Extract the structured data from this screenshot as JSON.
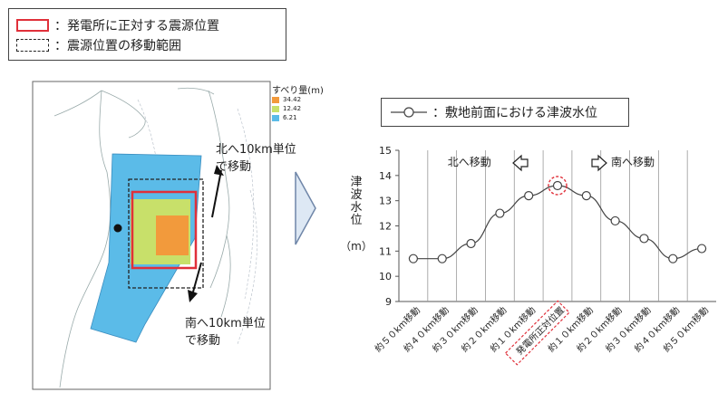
{
  "legend": {
    "items": [
      {
        "label": "：発電所に正対する震源位置",
        "style": "red-solid"
      },
      {
        "label": "：震源位置の移動範囲",
        "style": "black-dashed"
      }
    ]
  },
  "map": {
    "scale_title": "すべり量(m)",
    "scale_items": [
      {
        "label": "34.42",
        "color": "#f29a3c"
      },
      {
        "label": "12.42",
        "color": "#c8e06a"
      },
      {
        "label": "6.21",
        "color": "#5bbbe8"
      }
    ],
    "north_label_line1": "北へ10km単位",
    "north_label_line2": "で移動",
    "south_label_line1": "南へ10km単位",
    "south_label_line2": "で移動",
    "colors": {
      "fault": "#5bbbe8",
      "mid": "#c8e06a",
      "core": "#f29a3c",
      "red": "#e0303a",
      "arrow": "#dde8f4"
    }
  },
  "chart_legend": {
    "label": "：敷地前面における津波水位"
  },
  "chart_data": {
    "type": "line",
    "title": "",
    "xlabel": "",
    "ylabel": "津波水位",
    "ylabel_unit": "（m）",
    "ylim": [
      9,
      15
    ],
    "yticks": [
      "9",
      "10",
      "11",
      "12",
      "13",
      "14",
      "15"
    ],
    "categories": [
      "約５０km移動",
      "約４０km移動",
      "約３０km移動",
      "約２０km移動",
      "約１０km移動",
      "発電所正対位置",
      "約１０km移動",
      "約２０km移動",
      "約３０km移動",
      "約４０km移動",
      "約５０km移動"
    ],
    "series": [
      {
        "values": [
          10.7,
          10.7,
          11.3,
          12.5,
          13.2,
          13.6,
          13.2,
          12.2,
          11.5,
          10.7,
          11.1
        ]
      }
    ],
    "annotations": {
      "north": "北へ移動",
      "south": "南へ移動"
    },
    "highlight_index": 5,
    "colors": {
      "line": "#444444",
      "highlight": "#e0303a",
      "grid": "#999999"
    }
  }
}
